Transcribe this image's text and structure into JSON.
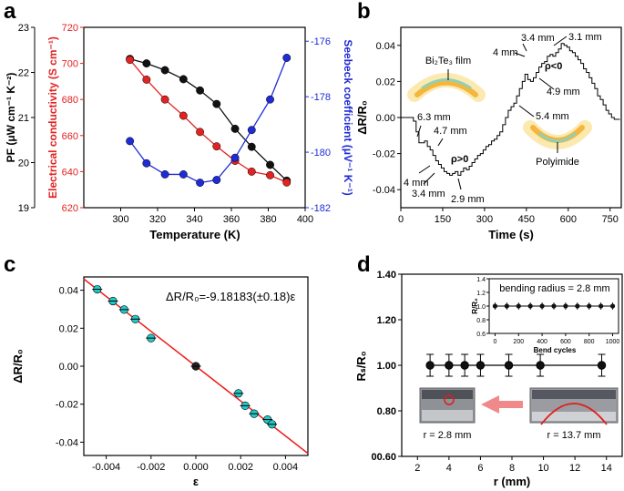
{
  "panels": {
    "a": "a",
    "b": "b",
    "c": "c",
    "d": "d"
  },
  "colors": {
    "black": "#111111",
    "red": "#e32222",
    "blue": "#1f2bd6",
    "cyan": "#22c9c9",
    "fit": "#ee1c1c"
  },
  "chart_data": [
    {
      "panel": "a",
      "type": "line",
      "xlabel": "Temperature (K)",
      "ylabel_left": "PF (μW cm⁻¹ K⁻²)",
      "ylabel_mid": "Electrical conductivity (S cm⁻¹)",
      "ylabel_right": "Seebeck coefficient (μV⁻¹ K⁻¹)",
      "xlim": [
        280,
        400
      ],
      "xticks": [
        "300",
        "320",
        "340",
        "360",
        "380",
        "400"
      ],
      "pf_ylim": [
        19,
        23
      ],
      "pf_yticks": [
        "19",
        "20",
        "21",
        "22",
        "23"
      ],
      "sigma_ylim": [
        620,
        720
      ],
      "sigma_yticks": [
        "620",
        "640",
        "660",
        "680",
        "700",
        "720"
      ],
      "seebeck_ylim": [
        -182,
        -175.5
      ],
      "seebeck_yticks": [
        "-182",
        "-180",
        "-178",
        "-176"
      ],
      "x": [
        305,
        314,
        324,
        334,
        343,
        352,
        362,
        371,
        381,
        390
      ],
      "series": [
        {
          "name": "PF",
          "axis": "pf",
          "values": [
            22.3,
            22.2,
            22.05,
            21.85,
            21.6,
            21.3,
            20.75,
            20.35,
            19.95,
            19.6
          ]
        },
        {
          "name": "Electrical conductivity",
          "axis": "sigma",
          "values": [
            702,
            691,
            680,
            671,
            662,
            654,
            646,
            640,
            638,
            634
          ]
        },
        {
          "name": "Seebeck coefficient",
          "axis": "seebeck",
          "values": [
            -179.6,
            -180.4,
            -180.8,
            -180.8,
            -181.1,
            -181.0,
            -180.2,
            -179.2,
            -178.1,
            -176.6
          ]
        }
      ]
    },
    {
      "panel": "b",
      "type": "line",
      "xlabel": "Time (s)",
      "ylabel": "ΔR/R₀",
      "xlim": [
        0,
        790
      ],
      "ylim": [
        -0.05,
        0.05
      ],
      "xticks": [
        "0",
        "150",
        "300",
        "450",
        "600",
        "750"
      ],
      "yticks": [
        "-0.04",
        "-0.02",
        "0.00",
        "0.02",
        "0.04"
      ],
      "step_t": [
        0,
        25,
        45,
        55,
        65,
        85,
        95,
        105,
        115,
        125,
        135,
        145,
        155,
        165,
        175,
        185,
        195,
        205,
        215,
        225,
        235,
        245,
        255,
        265,
        275,
        285,
        295,
        305,
        315,
        325,
        335,
        345,
        355,
        365,
        375,
        385,
        395,
        405,
        415,
        425,
        435,
        445,
        455,
        465,
        475,
        485,
        495,
        505,
        515,
        525,
        535,
        545,
        555,
        565,
        575,
        585,
        595,
        605,
        615,
        625,
        635,
        645,
        655,
        665,
        675,
        685,
        695,
        705,
        715,
        725,
        735,
        745,
        755,
        765,
        775,
        785
      ],
      "step_v": [
        0,
        0,
        -0.002,
        -0.008,
        -0.014,
        -0.013,
        -0.016,
        -0.018,
        -0.021,
        -0.024,
        -0.026,
        -0.028,
        -0.03,
        -0.031,
        -0.032,
        -0.031,
        -0.03,
        -0.032,
        -0.03,
        -0.028,
        -0.029,
        -0.027,
        -0.025,
        -0.023,
        -0.021,
        -0.02,
        -0.018,
        -0.016,
        -0.015,
        -0.013,
        -0.012,
        -0.01,
        -0.008,
        -0.004,
        0.0,
        0.004,
        0.006,
        0.008,
        0.012,
        0.016,
        0.02,
        0.024,
        0.021,
        0.02,
        0.022,
        0.025,
        0.028,
        0.03,
        0.031,
        0.034,
        0.035,
        0.034,
        0.036,
        0.038,
        0.041,
        0.04,
        0.039,
        0.037,
        0.036,
        0.034,
        0.032,
        0.03,
        0.027,
        0.025,
        0.022,
        0.019,
        0.016,
        0.012,
        0.01,
        0.007,
        0.004,
        0.002,
        0.0,
        -0.001,
        -0.001,
        -0.001
      ],
      "annotations": [
        "6.3 mm",
        "4.7 mm",
        "4 mm",
        "3.4 mm",
        "2.9 mm",
        "ρ>0",
        "3.4 mm",
        "3.1 mm",
        "4 mm",
        "ρ<0",
        "4.9 mm",
        "5.4 mm",
        "Bi₂Te₃ film",
        "Polyimide"
      ]
    },
    {
      "panel": "c",
      "type": "scatter",
      "xlabel": "ε",
      "ylabel": "ΔR/R₀",
      "xlim": [
        -0.005,
        0.005
      ],
      "ylim": [
        -0.047,
        0.047
      ],
      "xticks": [
        "-0.004",
        "-0.002",
        "0.000",
        "0.002",
        "0.004"
      ],
      "yticks": [
        "-0.04",
        "-0.02",
        "0.00",
        "0.02",
        "0.04"
      ],
      "fit_label": "ΔR/R₀=-9.18183(±0.18)ε",
      "fit_slope": -9.18183,
      "points": [
        [
          -0.0044,
          0.0405
        ],
        [
          -0.0037,
          0.0343
        ],
        [
          -0.0032,
          0.0298
        ],
        [
          -0.0027,
          0.0248
        ],
        [
          -0.002,
          0.0148
        ],
        [
          0.0,
          0.0
        ],
        [
          0.0019,
          -0.0143
        ],
        [
          0.0022,
          -0.0208
        ],
        [
          0.0026,
          -0.025
        ],
        [
          0.0032,
          -0.0281
        ],
        [
          0.0034,
          -0.0306
        ]
      ]
    },
    {
      "panel": "d",
      "type": "line",
      "xlabel": "r (mm)",
      "ylabel": "Rₛ/R₀",
      "xlim": [
        1,
        15
      ],
      "ylim": [
        0.6,
        1.4
      ],
      "xticks": [
        "2",
        "4",
        "6",
        "8",
        "10",
        "12",
        "14"
      ],
      "yticks": [
        "00.60",
        "0.80",
        "1.00",
        "1.20",
        "1.40"
      ],
      "x": [
        2.8,
        4.0,
        5.0,
        6.0,
        7.8,
        9.8,
        13.7
      ],
      "values": [
        1.0,
        1.0,
        1.0,
        1.0,
        1.0,
        1.0,
        1.0
      ],
      "error": [
        0.02,
        0.02,
        0.02,
        0.02,
        0.02,
        0.02,
        0.02
      ],
      "photo_labels": [
        "r = 2.8 mm",
        "r = 13.7 mm"
      ],
      "inset": {
        "title": "bending radius = 2.8 mm",
        "xlabel": "Bend cycles",
        "ylabel": "R/R₀",
        "xlim": [
          -50,
          1050
        ],
        "ylim": [
          0.6,
          1.4
        ],
        "xticks": [
          "0",
          "200",
          "400",
          "600",
          "800",
          "1000"
        ],
        "yticks": [
          "0.6",
          "0.8",
          "1.0",
          "1.2",
          "1.4"
        ],
        "x": [
          0,
          100,
          200,
          300,
          400,
          500,
          600,
          700,
          800,
          900,
          1000
        ],
        "values": [
          1.0,
          1.0,
          1.0,
          1.0,
          1.0,
          1.0,
          1.0,
          1.0,
          1.0,
          1.0,
          1.0
        ]
      }
    }
  ]
}
